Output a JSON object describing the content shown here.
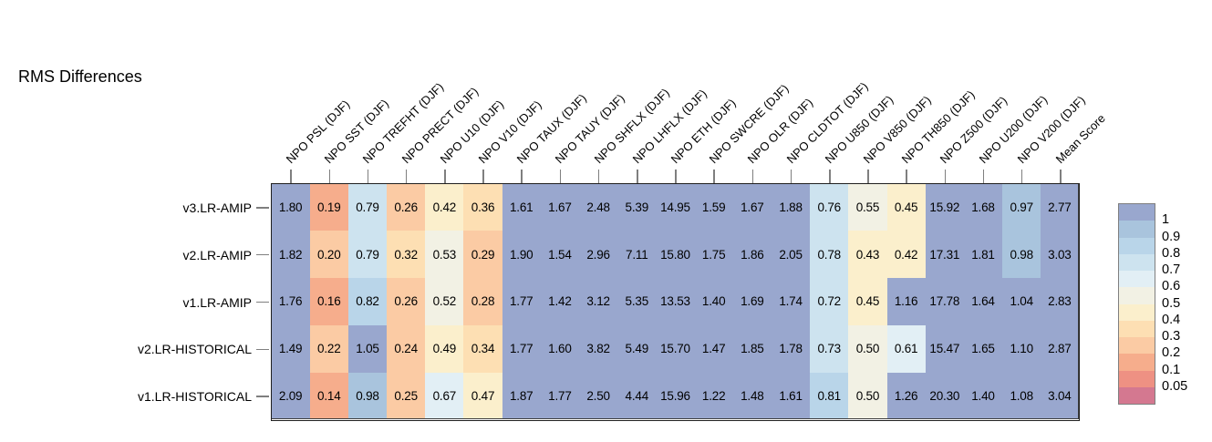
{
  "title": "RMS Differences",
  "chart_data": {
    "type": "heatmap",
    "title": "RMS Differences",
    "season": "DJF",
    "region": "NPO",
    "columns": [
      "NPO PSL (DJF)",
      "NPO SST (DJF)",
      "NPO TREFHT (DJF)",
      "NPO PRECT (DJF)",
      "NPO U10 (DJF)",
      "NPO V10 (DJF)",
      "NPO TAUX (DJF)",
      "NPO TAUY (DJF)",
      "NPO SHFLX (DJF)",
      "NPO LHFLX (DJF)",
      "NPO ETH (DJF)",
      "NPO SWCRE (DJF)",
      "NPO OLR (DJF)",
      "NPO CLDTOT (DJF)",
      "NPO U850 (DJF)",
      "NPO V850 (DJF)",
      "NPO TH850 (DJF)",
      "NPO Z500 (DJF)",
      "NPO U200 (DJF)",
      "NPO V200 (DJF)",
      "Mean Score"
    ],
    "rows": [
      "v3.LR-AMIP",
      "v2.LR-AMIP",
      "v1.LR-AMIP",
      "v2.LR-HISTORICAL",
      "v1.LR-HISTORICAL"
    ],
    "values": [
      [
        "1.80",
        "0.19",
        "0.79",
        "0.26",
        "0.42",
        "0.36",
        "1.61",
        "1.67",
        "2.48",
        "5.39",
        "14.95",
        "1.59",
        "1.67",
        "1.88",
        "0.76",
        "0.55",
        "0.45",
        "15.92",
        "1.68",
        "0.97",
        "2.77"
      ],
      [
        "1.82",
        "0.20",
        "0.79",
        "0.32",
        "0.53",
        "0.29",
        "1.90",
        "1.54",
        "2.96",
        "7.11",
        "15.80",
        "1.75",
        "1.86",
        "2.05",
        "0.78",
        "0.43",
        "0.42",
        "17.31",
        "1.81",
        "0.98",
        "3.03"
      ],
      [
        "1.76",
        "0.16",
        "0.82",
        "0.26",
        "0.52",
        "0.28",
        "1.77",
        "1.42",
        "3.12",
        "5.35",
        "13.53",
        "1.40",
        "1.69",
        "1.74",
        "0.72",
        "0.45",
        "1.16",
        "17.78",
        "1.64",
        "1.04",
        "2.83"
      ],
      [
        "1.49",
        "0.22",
        "1.05",
        "0.24",
        "0.49",
        "0.34",
        "1.77",
        "1.60",
        "3.82",
        "5.49",
        "15.70",
        "1.47",
        "1.85",
        "1.78",
        "0.73",
        "0.50",
        "0.61",
        "15.47",
        "1.65",
        "1.10",
        "2.87"
      ],
      [
        "2.09",
        "0.14",
        "0.98",
        "0.25",
        "0.67",
        "0.47",
        "1.87",
        "1.77",
        "2.50",
        "4.44",
        "15.96",
        "1.22",
        "1.48",
        "1.61",
        "0.81",
        "0.50",
        "1.26",
        "20.30",
        "1.40",
        "1.08",
        "3.04"
      ]
    ],
    "colorbar": {
      "position": "right",
      "tick_labels": [
        "1",
        "0.9",
        "0.8",
        "0.7",
        "0.6",
        "0.5",
        "0.4",
        "0.3",
        "0.2",
        "0.1",
        "0.05"
      ],
      "thresholds": [
        1,
        0.9,
        0.8,
        0.7,
        0.6,
        0.5,
        0.4,
        0.3,
        0.2,
        0.1,
        0.05
      ],
      "band_colors": [
        "#99A7CE",
        "#A9C4DD",
        "#B9D5E9",
        "#CDE3EF",
        "#E2EFF5",
        "#F2F1E4",
        "#FBEFCC",
        "#FDDFB3",
        "#FBCBA4",
        "#F6AD8C",
        "#EE9183",
        "#D47890"
      ]
    },
    "layout": {
      "value_labels": true,
      "grid_lines": true,
      "x_tick_label_rotation_deg": 45
    }
  }
}
